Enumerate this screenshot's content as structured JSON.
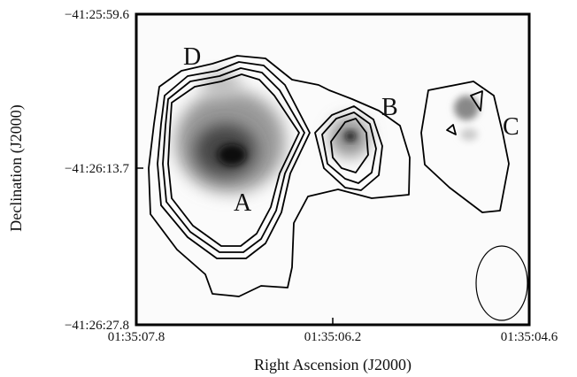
{
  "figure": {
    "x_label": "Right Ascension (J2000)",
    "y_label": "Declination (J2000)",
    "x_ticks": [
      "01:35:07.8",
      "01:35:06.2",
      "01:35:04.6"
    ],
    "y_ticks": [
      "−41:25:59.6",
      "−41:26:13.7",
      "−41:26:27.8"
    ],
    "region_labels": [
      "A",
      "B",
      "C",
      "D"
    ]
  }
}
